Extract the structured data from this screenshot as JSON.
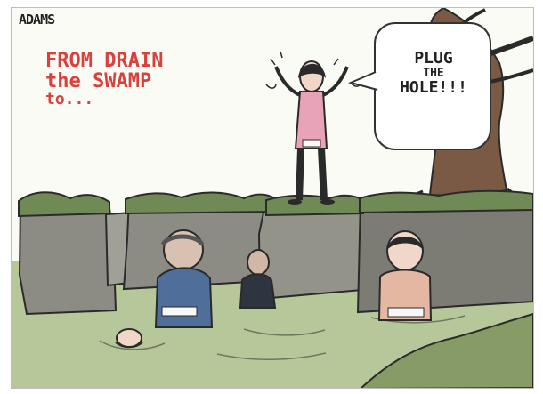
{
  "cartoon": {
    "signature": "ADAMS",
    "credit_line": "",
    "caption": {
      "line1": "FROM DRAIN",
      "line2": "the SWAMP",
      "line3": "to..."
    },
    "speech_bubble": {
      "line1": "PLUG",
      "line2": "THE",
      "line3": "HOLE!!!"
    },
    "labels": {
      "standing_figure_shirt": "",
      "left_figure_chest": "",
      "right_figure_chest": ""
    }
  },
  "colors": {
    "caption_red": "#d8423d",
    "swamp_green": "#b6c79a",
    "moss_green": "#6f8a55",
    "mud_gray": "#8c8c84",
    "shirt_pink": "#e8a3b8",
    "suit_blue": "#4f6f9a",
    "tree_brown": "#7a5a45",
    "ink": "#2a2a2a"
  },
  "icons": {
    "sweat_drops": "sweat-drops-icon",
    "wave_lines": "water-ripple-icon"
  }
}
